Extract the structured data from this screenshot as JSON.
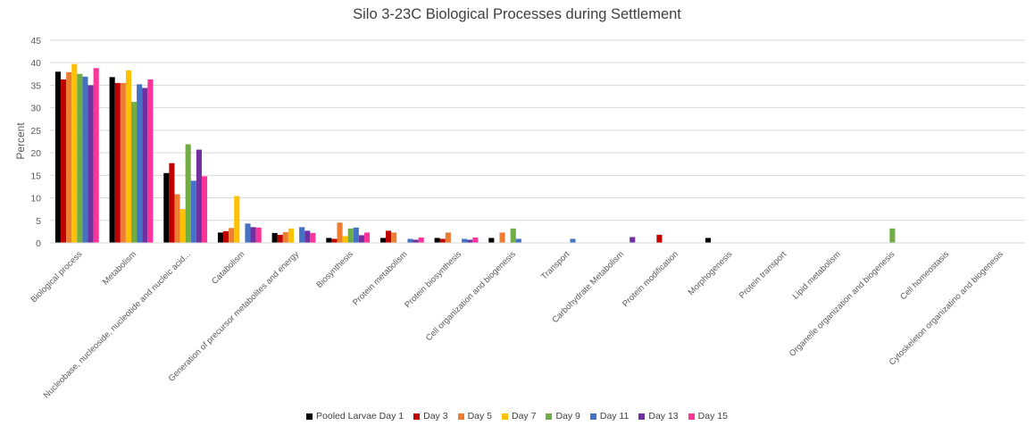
{
  "chart_data": {
    "type": "bar",
    "title": "Silo 3-23C Biological Processes during Settlement",
    "xlabel": "",
    "ylabel": "Percent",
    "ylim": [
      0,
      45
    ],
    "yticks": [
      0,
      5,
      10,
      15,
      20,
      25,
      30,
      35,
      40,
      45
    ],
    "grid": true,
    "legend_position": "bottom",
    "categories": [
      "Biological process",
      "Metabolism",
      "Nucleobase, nucleoside, nucleotide and nucleic acid...",
      "Catabolism",
      "Generation of precursor metabolites and energy",
      "Biosynthesis",
      "Protein metabolism",
      "Protein biosynthesis",
      "Cell organization and biogenesis",
      "Transport",
      "Carbohydrate Metabolism",
      "Protein modification",
      "Morphogenesis",
      "Protein transport",
      "Lipid metabolism",
      "Organelle organization and biogenesis",
      "Cell homeostasis",
      "Cytoskeleton organizatino and biogenesis"
    ],
    "series": [
      {
        "name": "Pooled Larvae Day 1",
        "color": "#000000",
        "values": [
          38,
          36.8,
          15.5,
          2.3,
          2.2,
          1.1,
          1.1,
          1.1,
          1.1,
          0,
          0,
          0,
          1.1,
          0,
          0,
          0,
          0,
          0
        ]
      },
      {
        "name": "Day 3",
        "color": "#c00000",
        "values": [
          36.3,
          35.5,
          17.7,
          2.6,
          1.8,
          0.9,
          2.7,
          0.9,
          0,
          0,
          0,
          1.8,
          0,
          0,
          0,
          0,
          0,
          0
        ]
      },
      {
        "name": "Day 5",
        "color": "#ed7d31",
        "values": [
          37.9,
          35.5,
          10.8,
          3.3,
          2.4,
          4.5,
          2.3,
          2.3,
          2.3,
          0,
          0,
          0,
          0,
          0,
          0,
          0,
          0,
          0
        ]
      },
      {
        "name": "Day 7",
        "color": "#ffc000",
        "values": [
          39.7,
          38.3,
          7.5,
          10.4,
          3.2,
          1.5,
          0,
          0,
          0,
          0,
          0,
          0,
          0,
          0,
          0,
          0,
          0,
          0
        ]
      },
      {
        "name": "Day 9",
        "color": "#70ad47",
        "values": [
          37.5,
          31.3,
          21.9,
          0,
          0,
          3.2,
          0,
          0,
          3.2,
          0,
          0,
          0,
          0,
          0,
          0,
          3.2,
          0,
          0
        ]
      },
      {
        "name": "Day 11",
        "color": "#4472c4",
        "values": [
          36.9,
          35.2,
          13.8,
          4.3,
          3.5,
          3.4,
          0.9,
          0.9,
          0.9,
          0.9,
          0,
          0,
          0,
          0,
          0,
          0,
          0,
          0
        ]
      },
      {
        "name": "Day 13",
        "color": "#7030a0",
        "values": [
          35,
          34.4,
          20.7,
          3.5,
          2.7,
          1.7,
          0.7,
          0.7,
          0,
          0,
          1.3,
          0,
          0,
          0,
          0,
          0,
          0,
          0
        ]
      },
      {
        "name": "Day 15",
        "color": "#ff3399",
        "values": [
          38.8,
          36.3,
          14.8,
          3.4,
          2.2,
          2.3,
          1.2,
          1.2,
          0,
          0,
          0,
          0,
          0,
          0,
          0,
          0,
          0,
          0
        ]
      }
    ]
  }
}
